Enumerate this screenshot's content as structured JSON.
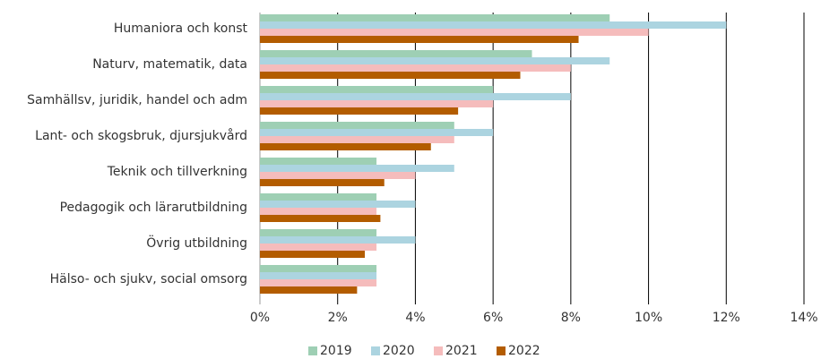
{
  "chart_data": {
    "type": "barh",
    "categories": [
      "Humaniora och konst",
      "Naturv, matematik, data",
      "Samhällsv, juridik, handel och adm",
      "Lant- och skogsbruk, djursjukvård",
      "Teknik och tillverkning",
      "Pedagogik och lärarutbildning",
      "Övrig utbildning",
      "Hälso- och sjukv, social omsorg"
    ],
    "series": [
      {
        "name": "2019",
        "color": "#9ecfb4",
        "values": [
          9,
          7,
          6,
          5,
          3,
          3,
          3,
          3
        ]
      },
      {
        "name": "2020",
        "color": "#acd4e0",
        "values": [
          12,
          9,
          8,
          6,
          5,
          4,
          4,
          3
        ]
      },
      {
        "name": "2021",
        "color": "#f5bcbc",
        "values": [
          10,
          8,
          6,
          5,
          4,
          3,
          3,
          3
        ]
      },
      {
        "name": "2022",
        "color": "#b35c00",
        "values": [
          8.2,
          6.7,
          5.1,
          4.4,
          3.2,
          3.1,
          2.7,
          2.5
        ]
      }
    ],
    "xlim": [
      0,
      14
    ],
    "xticks": [
      {
        "value": 0,
        "label": "0%"
      },
      {
        "value": 2,
        "label": "2%"
      },
      {
        "value": 4,
        "label": "4%"
      },
      {
        "value": 6,
        "label": "6%"
      },
      {
        "value": 8,
        "label": "8%"
      },
      {
        "value": 10,
        "label": "10%"
      },
      {
        "value": 12,
        "label": "12%"
      },
      {
        "value": 14,
        "label": "14%"
      }
    ],
    "grid": true,
    "legend": "bottom"
  }
}
